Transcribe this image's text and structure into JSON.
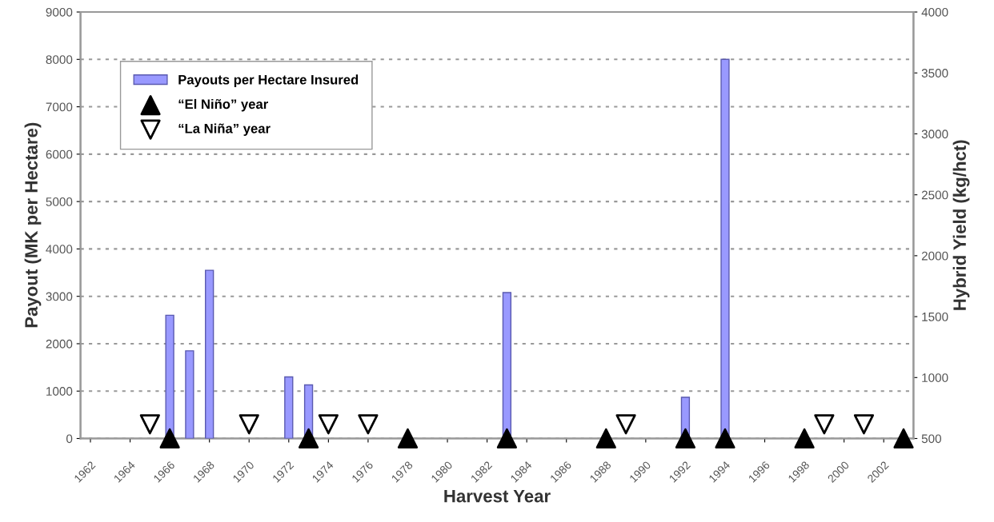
{
  "chart_data": {
    "type": "bar",
    "xlabel": "Harvest Year",
    "ylabel": "Payout (MK per Hectare)",
    "y2label": "Hybrid Yield (kg/hct)",
    "xlim": [
      1961.5,
      2003.5
    ],
    "xticks": [
      1962,
      1964,
      1966,
      1968,
      1970,
      1972,
      1974,
      1976,
      1978,
      1980,
      1982,
      1984,
      1986,
      1988,
      1990,
      1992,
      1994,
      1996,
      1998,
      2000,
      2002
    ],
    "ylim": [
      0,
      9000
    ],
    "yticks": [
      0,
      1000,
      2000,
      3000,
      4000,
      5000,
      6000,
      7000,
      8000,
      9000
    ],
    "y2lim": [
      500,
      4000
    ],
    "y2ticks": [
      500,
      1000,
      1500,
      2000,
      2500,
      3000,
      3500,
      4000
    ],
    "grid": "y",
    "legend": "top left",
    "series": [
      {
        "name": "Payouts per Hectare Insured",
        "color": "#9999ff",
        "x": [
          1966,
          1967,
          1968,
          1972,
          1973,
          1983,
          1992,
          1994
        ],
        "values": [
          2600,
          1850,
          3550,
          1300,
          1130,
          3080,
          870,
          8000
        ]
      },
      {
        "name": "“El Niño” year",
        "type": "scatter",
        "marker": "triangle",
        "color": "#000000",
        "x": [
          1966,
          1973,
          1978,
          1983,
          1988,
          1992,
          1994,
          1998,
          2003
        ],
        "values": [
          0,
          0,
          0,
          0,
          0,
          0,
          0,
          0,
          0
        ]
      },
      {
        "name": "“La Niña” year",
        "type": "scatter",
        "marker": "triangle_down",
        "color": "#ffffff",
        "x": [
          1965,
          1970,
          1974,
          1976,
          1989,
          1999,
          2001
        ],
        "values": [
          300,
          300,
          300,
          300,
          300,
          300,
          300
        ]
      }
    ]
  }
}
